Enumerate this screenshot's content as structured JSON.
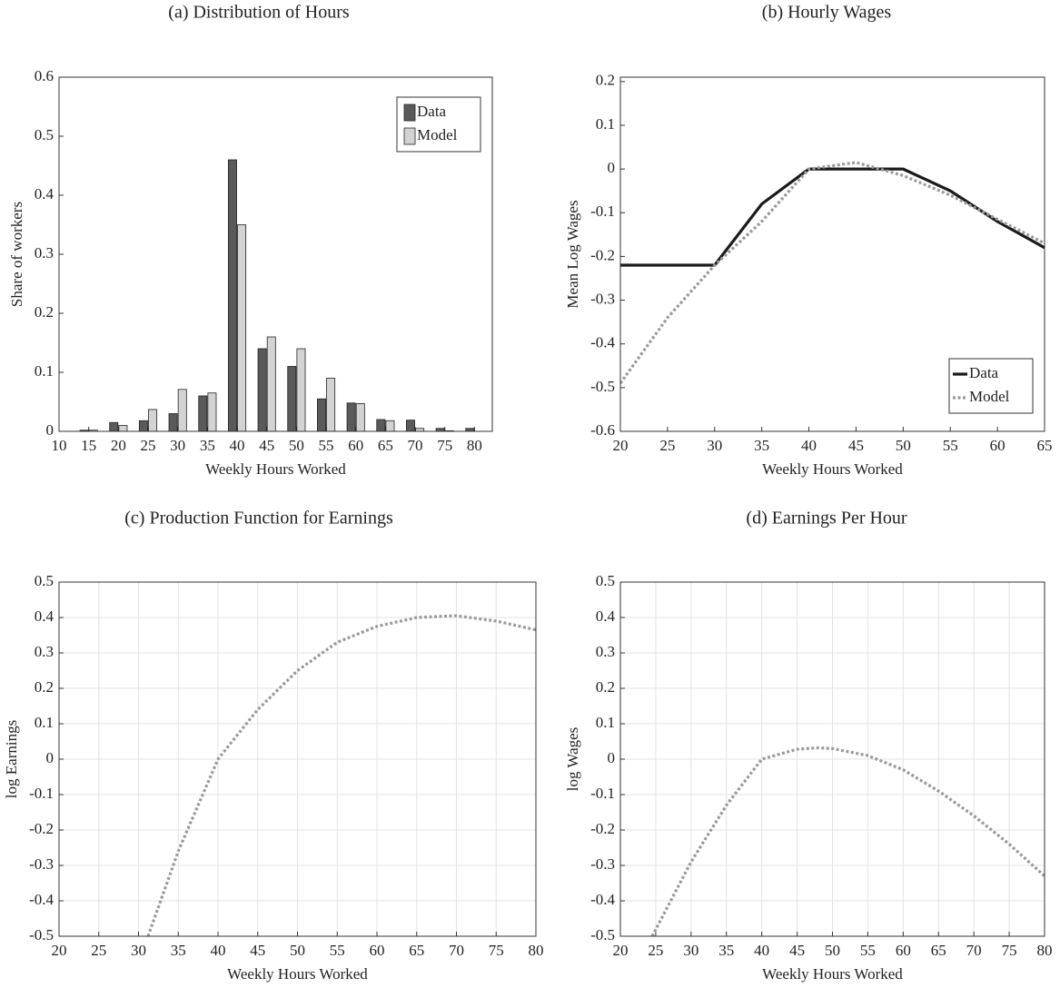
{
  "chart_data": [
    {
      "type": "bar",
      "title": "(a) Distribution of Hours",
      "xlabel": "Weekly Hours Worked",
      "ylabel": "Share of workers",
      "x": [
        15,
        20,
        25,
        30,
        35,
        40,
        45,
        50,
        55,
        60,
        65,
        70,
        75,
        80
      ],
      "series": [
        {
          "name": "Data",
          "color": "#5a5a5a",
          "values": [
            0.002,
            0.015,
            0.018,
            0.03,
            0.06,
            0.46,
            0.14,
            0.11,
            0.055,
            0.048,
            0.02,
            0.019,
            0.005,
            0.005
          ]
        },
        {
          "name": "Model",
          "color": "#d3d3d3",
          "values": [
            0.002,
            0.01,
            0.037,
            0.071,
            0.065,
            0.35,
            0.16,
            0.14,
            0.09,
            0.047,
            0.018,
            0.005,
            0.001,
            0
          ]
        }
      ],
      "xlim": [
        10,
        83
      ],
      "xticks": [
        10,
        15,
        20,
        25,
        30,
        35,
        40,
        45,
        50,
        55,
        60,
        65,
        70,
        75,
        80
      ],
      "ylim": [
        0,
        0.6
      ],
      "yticks": [
        0,
        0.1,
        0.2,
        0.3,
        0.4,
        0.5,
        0.6
      ],
      "grid": false,
      "legend": "upper right"
    },
    {
      "type": "line",
      "title": "(b) Hourly Wages",
      "xlabel": "Weekly Hours Worked",
      "ylabel": "Mean Log Wages",
      "x": [
        20,
        25,
        30,
        35,
        40,
        45,
        50,
        55,
        60,
        65
      ],
      "series": [
        {
          "name": "Data",
          "color": "#1a1a1a",
          "style": "solid",
          "values": [
            -0.22,
            -0.22,
            -0.22,
            -0.08,
            0,
            0,
            0,
            -0.05,
            -0.12,
            -0.18
          ]
        },
        {
          "name": "Model",
          "color": "#9a9a9a",
          "style": "dotted",
          "values": [
            -0.49,
            -0.34,
            -0.22,
            -0.12,
            0,
            0.015,
            -0.015,
            -0.06,
            -0.115,
            -0.17
          ]
        }
      ],
      "xlim": [
        20,
        65
      ],
      "xticks": [
        20,
        25,
        30,
        35,
        40,
        45,
        50,
        55,
        60,
        65
      ],
      "ylim": [
        -0.6,
        0.21
      ],
      "yticks": [
        -0.6,
        -0.5,
        -0.4,
        -0.3,
        -0.2,
        -0.1,
        0,
        0.1,
        0.2
      ],
      "grid": false,
      "legend": "lower right"
    },
    {
      "type": "line",
      "title": "(c) Production Function for Earnings",
      "xlabel": "Weekly Hours Worked",
      "ylabel": "log Earnings",
      "x": [
        31.2,
        35,
        40,
        45,
        50,
        55,
        60,
        65,
        70,
        75,
        80
      ],
      "values": [
        -0.5,
        -0.26,
        0,
        0.14,
        0.25,
        0.33,
        0.375,
        0.4,
        0.405,
        0.39,
        0.365
      ],
      "color": "#9a9a9a",
      "style": "dotted",
      "xlim": [
        20,
        80
      ],
      "xticks": [
        20,
        25,
        30,
        35,
        40,
        45,
        50,
        55,
        60,
        65,
        70,
        75,
        80
      ],
      "ylim": [
        -0.5,
        0.5
      ],
      "yticks": [
        -0.5,
        -0.4,
        -0.3,
        -0.2,
        -0.1,
        0,
        0.1,
        0.2,
        0.3,
        0.4,
        0.5
      ],
      "grid": true
    },
    {
      "type": "line",
      "title": "(d) Earnings Per Hour",
      "xlabel": "Weekly Hours Worked",
      "ylabel": "log Wages",
      "x": [
        24.5,
        30,
        35,
        40,
        45,
        48,
        50,
        55,
        60,
        65,
        70,
        75,
        80
      ],
      "values": [
        -0.5,
        -0.29,
        -0.13,
        0,
        0.028,
        0.032,
        0.03,
        0.01,
        -0.03,
        -0.09,
        -0.16,
        -0.24,
        -0.33
      ],
      "color": "#9a9a9a",
      "style": "dotted",
      "xlim": [
        20,
        80
      ],
      "xticks": [
        20,
        25,
        30,
        35,
        40,
        45,
        50,
        55,
        60,
        65,
        70,
        75,
        80
      ],
      "ylim": [
        -0.5,
        0.5
      ],
      "yticks": [
        -0.5,
        -0.4,
        -0.3,
        -0.2,
        -0.1,
        0,
        0.1,
        0.2,
        0.3,
        0.4,
        0.5
      ],
      "grid": true
    }
  ]
}
